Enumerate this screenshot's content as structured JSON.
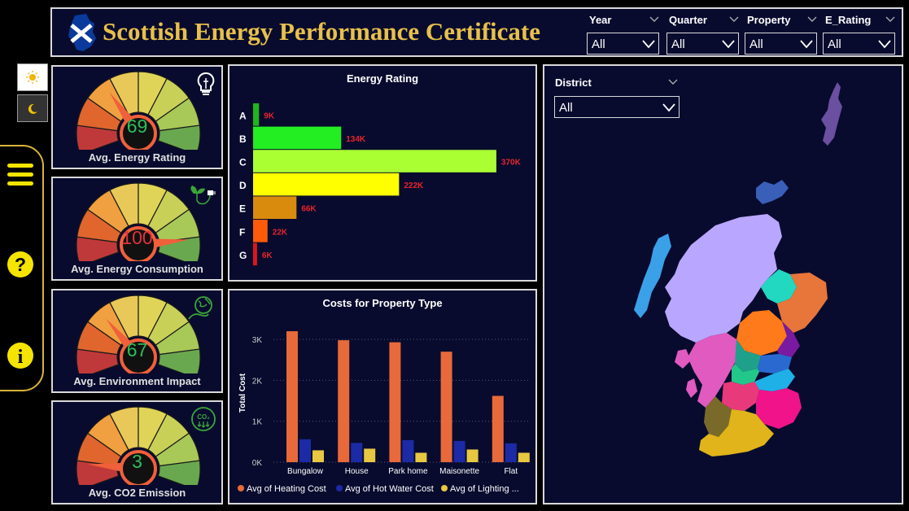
{
  "header": {
    "title": "Scottish Energy Performance Certificate",
    "slicers": [
      {
        "label": "Year",
        "value": "All"
      },
      {
        "label": "Quarter",
        "value": "All"
      },
      {
        "label": "Property",
        "value": "All"
      },
      {
        "label": "E_Rating",
        "value": "All"
      }
    ]
  },
  "kpis": [
    {
      "label": "Avg. Energy Rating",
      "value": "69",
      "value_color": "#2dbf5a",
      "icon": "lightbulb-icon"
    },
    {
      "label": "Avg. Energy Consumption",
      "value": "100",
      "value_color": "#e0323a",
      "icon": "plug-leaf-icon"
    },
    {
      "label": "Avg. Environment Impact",
      "value": "67",
      "value_color": "#2dbf5a",
      "icon": "globe-hand-icon"
    },
    {
      "label": "Avg. CO2 Emission",
      "value": "3",
      "value_color": "#2dbf5a",
      "icon": "co2-icon"
    }
  ],
  "chart_data": [
    {
      "type": "bar",
      "orientation": "horizontal",
      "title": "Energy Rating",
      "categories": [
        "A",
        "B",
        "C",
        "D",
        "E",
        "F",
        "G"
      ],
      "values": [
        9,
        134,
        370,
        222,
        66,
        22,
        6
      ],
      "data_labels": [
        "9K",
        "134K",
        "370K",
        "222K",
        "66K",
        "22K",
        "6K"
      ],
      "colors": [
        "#1fb51f",
        "#22ee22",
        "#aaff33",
        "#ffff00",
        "#d98b0e",
        "#ff5a0a",
        "#e0141e"
      ],
      "label_color": "#e8232a",
      "xlim": [
        0,
        380
      ]
    },
    {
      "type": "bar",
      "title": "Costs for Property Type",
      "ylabel": "Total Cost",
      "categories": [
        "Bungalow",
        "House",
        "Park home",
        "Maisonette",
        "Flat"
      ],
      "series": [
        {
          "name": "Avg of Heating Cost",
          "color": "#e8693a",
          "values": [
            3200,
            2980,
            2930,
            2700,
            1620
          ]
        },
        {
          "name": "Avg of Hot Water Cost",
          "color": "#1c2aa6",
          "values": [
            560,
            470,
            540,
            520,
            460
          ]
        },
        {
          "name": "Avg of Lighting ...",
          "color": "#e8c840",
          "values": [
            290,
            330,
            230,
            310,
            230
          ]
        }
      ],
      "yticks": [
        "0K",
        "1K",
        "2K",
        "3K"
      ],
      "ylim": [
        0,
        3400
      ],
      "grid": true,
      "legend": "bottom"
    }
  ],
  "map": {
    "slicer_label": "District",
    "slicer_value": "All"
  }
}
